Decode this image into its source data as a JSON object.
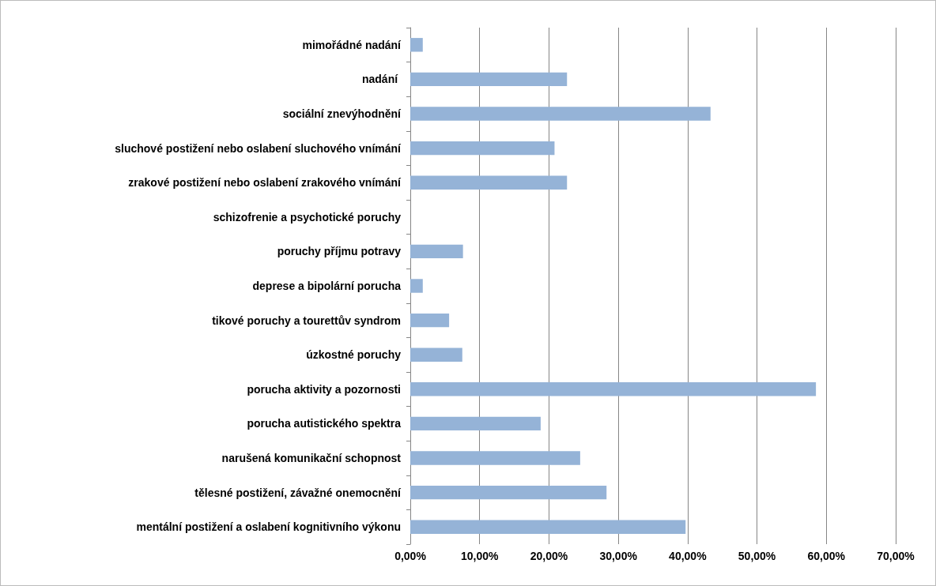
{
  "chart_data": {
    "type": "bar",
    "orientation": "horizontal",
    "categories": [
      "mimořádné nadání",
      "nadání ",
      "sociální znevýhodnění",
      "sluchové postižení nebo oslabení sluchového vnímání",
      "zrakové postižení nebo oslabení zrakového vnímání",
      "schizofrenie a psychotické poruchy",
      "poruchy příjmu potravy",
      "deprese a bipolární porucha",
      "tikové poruchy a tourettův syndrom",
      "úzkostné poruchy",
      "porucha aktivity a pozornosti",
      "porucha autistického spektra",
      "narušená komunikační schopnost",
      "tělesné postižení, závažné onemocnění",
      "mentální postižení a oslabení kognitivního výkonu"
    ],
    "values": [
      1.8,
      22.6,
      43.3,
      20.8,
      22.6,
      0,
      7.6,
      1.8,
      5.6,
      7.5,
      58.5,
      18.8,
      24.5,
      28.3,
      39.7
    ],
    "color": "#95b3d7",
    "xlim": [
      0,
      70
    ],
    "xticks": [
      {
        "value": 0,
        "label": "0,00%"
      },
      {
        "value": 10,
        "label": "10,00%"
      },
      {
        "value": 20,
        "label": "20,00%"
      },
      {
        "value": 30,
        "label": "30,00%"
      },
      {
        "value": 40,
        "label": "40,00%"
      },
      {
        "value": 50,
        "label": "50,00%"
      },
      {
        "value": 60,
        "label": "60,00%"
      },
      {
        "value": 70,
        "label": "70,00%"
      }
    ],
    "grid": "x"
  }
}
